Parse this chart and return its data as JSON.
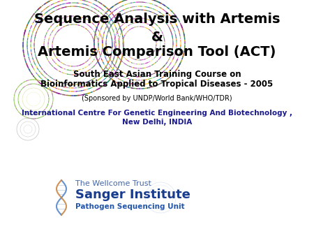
{
  "bg_color": "#ffffff",
  "title_line1": "Sequence Analysis with Artemis",
  "title_line2": "&",
  "title_line3": "Artemis Comparison Tool (ACT)",
  "subtitle_line1": "South East Asian Training Course on",
  "subtitle_line2": "Bioinformatics Applied to Tropical Diseases - 2005",
  "sponsored_text": "(Sponsored by UNDP/World Bank/WHO/TDR)",
  "institute_line1": "International Centre For Genetic Engineering And Biotechnology ,",
  "institute_line2": "New Delhi, INDIA",
  "sanger_line1": "The Wellcome Trust",
  "sanger_line2": "Sanger Institute",
  "sanger_line3": "Pathogen Sequencing Unit",
  "title_color": "#000000",
  "subtitle_color": "#000000",
  "sponsored_color": "#000000",
  "institute_color": "#1a1a8c",
  "sanger_color1": "#4466aa",
  "sanger_color2": "#1a3c8c",
  "sanger_color3": "#2255aa"
}
